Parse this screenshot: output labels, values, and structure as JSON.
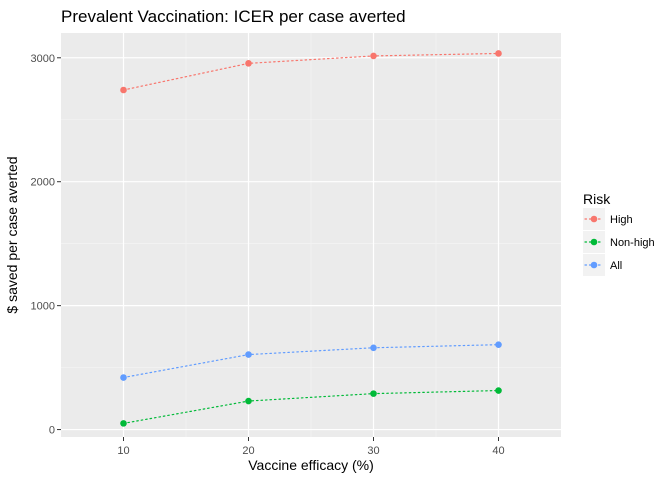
{
  "chart_data": {
    "type": "line",
    "title": "Prevalent Vaccination: ICER per case averted",
    "xlabel": "Vaccine efficacy (%)",
    "ylabel": "$ saved per case averted",
    "x": [
      10,
      20,
      30,
      40
    ],
    "xlim": [
      5,
      45
    ],
    "ylim": [
      -60,
      3200
    ],
    "xticks": [
      10,
      20,
      30,
      40
    ],
    "xtick_labels": [
      "10",
      "20",
      "30",
      "40"
    ],
    "yticks": [
      0,
      1000,
      2000,
      3000
    ],
    "ytick_labels": [
      "0",
      "1000",
      "2000",
      "3000"
    ],
    "grid": true,
    "line_style": "dotted",
    "legend": {
      "title": "Risk",
      "position": "right"
    },
    "series": [
      {
        "name": "High",
        "color": "#F8766D",
        "values": [
          2740,
          2955,
          3015,
          3035
        ]
      },
      {
        "name": "Non-high",
        "color": "#00BA38",
        "values": [
          50,
          230,
          290,
          315
        ]
      },
      {
        "name": "All",
        "color": "#619CFF",
        "values": [
          420,
          605,
          660,
          685
        ]
      }
    ]
  }
}
